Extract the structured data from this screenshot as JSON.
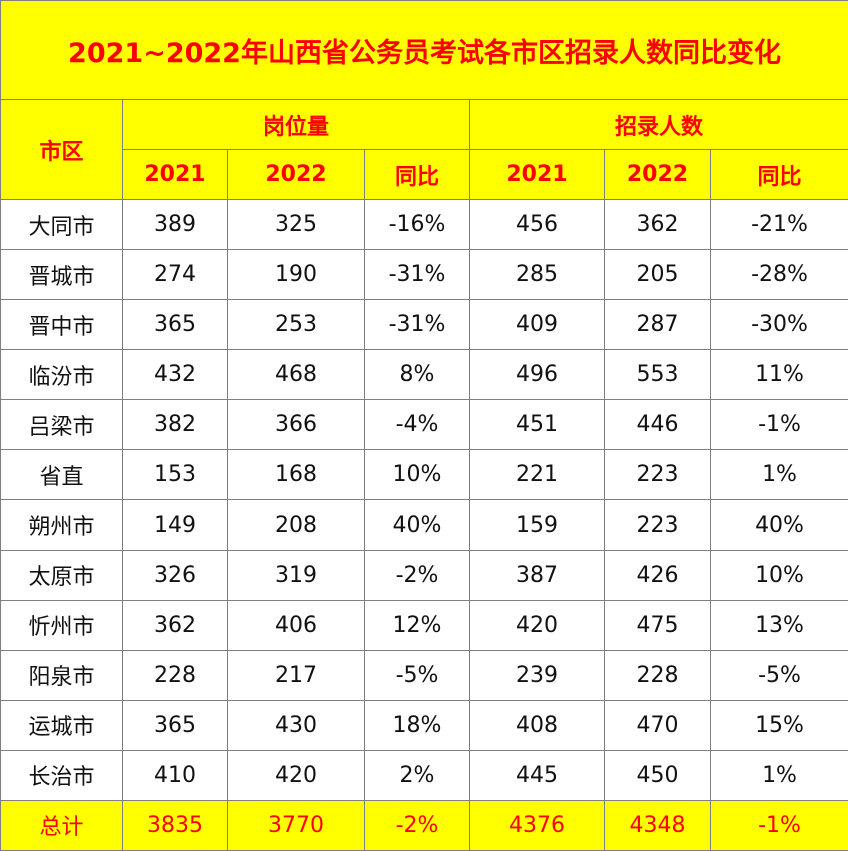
{
  "title": "2021~2022年山西省公务员考试各市区招录人数同比变化",
  "header": {
    "region": "市区",
    "group_positions": "岗位量",
    "group_recruits": "招录人数",
    "sub": [
      "2021",
      "2022",
      "同比",
      "2021",
      "2022",
      "同比"
    ]
  },
  "rows": [
    [
      "大同市",
      "389",
      "325",
      "-16%",
      "456",
      "362",
      "-21%"
    ],
    [
      "晋城市",
      "274",
      "190",
      "-31%",
      "285",
      "205",
      "-28%"
    ],
    [
      "晋中市",
      "365",
      "253",
      "-31%",
      "409",
      "287",
      "-30%"
    ],
    [
      "临汾市",
      "432",
      "468",
      "8%",
      "496",
      "553",
      "11%"
    ],
    [
      "吕梁市",
      "382",
      "366",
      "-4%",
      "451",
      "446",
      "-1%"
    ],
    [
      "省直",
      "153",
      "168",
      "10%",
      "221",
      "223",
      "1%"
    ],
    [
      "朔州市",
      "149",
      "208",
      "40%",
      "159",
      "223",
      "40%"
    ],
    [
      "太原市",
      "326",
      "319",
      "-2%",
      "387",
      "426",
      "10%"
    ],
    [
      "忻州市",
      "362",
      "406",
      "12%",
      "420",
      "475",
      "13%"
    ],
    [
      "阳泉市",
      "228",
      "217",
      "-5%",
      "239",
      "228",
      "-5%"
    ],
    [
      "运城市",
      "365",
      "430",
      "18%",
      "408",
      "470",
      "15%"
    ],
    [
      "长治市",
      "410",
      "420",
      "2%",
      "445",
      "450",
      "1%"
    ]
  ],
  "total": [
    "总计",
    "3835",
    "3770",
    "-2%",
    "4376",
    "4348",
    "-1%"
  ]
}
